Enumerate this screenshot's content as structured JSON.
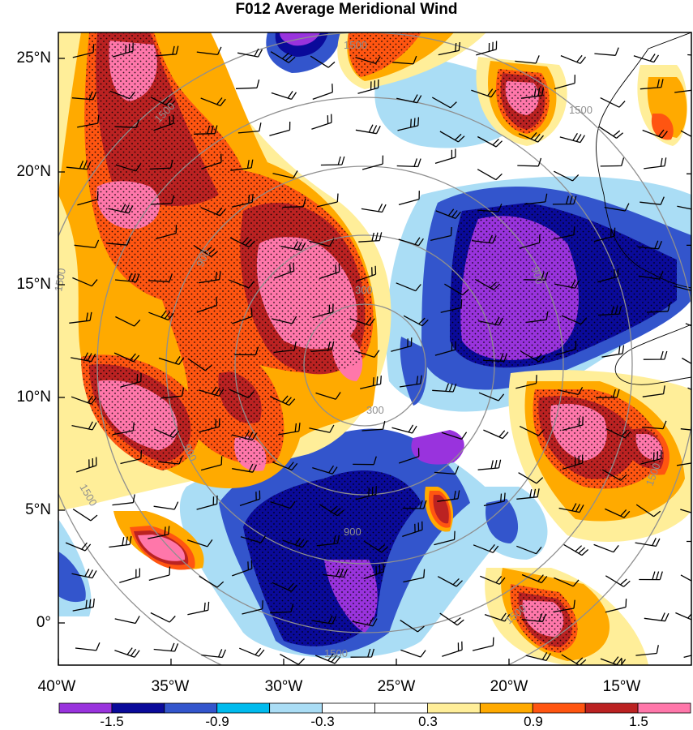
{
  "title": "F012 Average Meridional Wind",
  "lat_labels": [
    "25°N",
    "20°N",
    "15°N",
    "10°N",
    "5°N",
    "0°"
  ],
  "lon_labels": [
    "40°W",
    "35°W",
    "30°W",
    "25°W",
    "20°W",
    "15°W"
  ],
  "colorbar": {
    "colors": [
      "#9933dd",
      "#0a0a9a",
      "#3355cc",
      "#00bbee",
      "#aaddf5",
      "#ffffff",
      "#ffffff",
      "#ffee99",
      "#ffaa00",
      "#ff5511",
      "#bb2222",
      "#ff77aa"
    ],
    "labels": [
      "-1.5",
      "-0.9",
      "-0.3",
      "0.3",
      "0.9",
      "1.5"
    ]
  },
  "contour_labels": [
    "1500",
    "1500",
    "1500",
    "1500",
    "1500",
    "1500",
    "1500",
    "1500",
    "900",
    "900",
    "900",
    "900",
    "300",
    "300"
  ]
}
